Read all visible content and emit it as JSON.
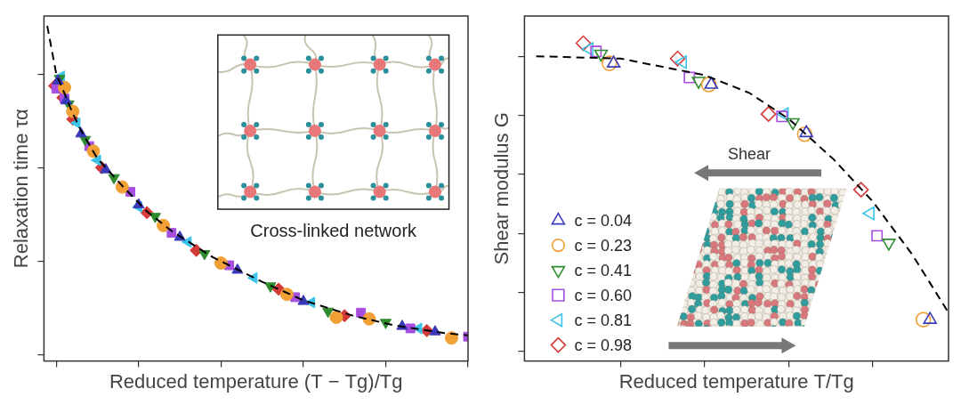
{
  "chart_data": [
    {
      "type": "scatter",
      "x_label": "Reduced temperature (T − Tg)/Tg",
      "y_label": "Relaxation time τα",
      "annotations": [
        "Cross-linked network"
      ],
      "log": "y",
      "grid": false,
      "tick_labels": false,
      "xlim": [
        -0.015,
        0.5
      ],
      "xticks": [
        0,
        0.1,
        0.2,
        0.3,
        0.4,
        0.5
      ],
      "ylim": [
        0.85,
        4200
      ],
      "yticks": [
        1,
        10,
        100,
        1000
      ],
      "series": [
        {
          "color": "#3a3ab8",
          "marker": "triangle",
          "x": [
            0.002,
            0.012,
            0.03,
            0.06,
            0.1,
            0.15,
            0.22,
            0.3,
            0.42,
            0.46
          ],
          "values": [
            850,
            520,
            230,
            95,
            40,
            18,
            8,
            3.7,
            2.0,
            1.75
          ]
        },
        {
          "color": "#f0a035",
          "marker": "circle",
          "x": [
            0.01,
            0.02,
            0.045,
            0.08,
            0.13,
            0.2,
            0.28,
            0.34,
            0.38,
            0.48
          ],
          "values": [
            720,
            400,
            150,
            62,
            24,
            9.5,
            4.4,
            2.5,
            2.4,
            1.5
          ]
        },
        {
          "color": "#2e8b2e",
          "marker": "triangle-down",
          "x": [
            0.004,
            0.015,
            0.035,
            0.07,
            0.12,
            0.18,
            0.26,
            0.33,
            0.4
          ],
          "values": [
            900,
            480,
            200,
            78,
            30,
            12,
            5.4,
            2.9,
            2.2
          ]
        },
        {
          "color": "#a64ee0",
          "marker": "square",
          "x": [
            0.0,
            0.01,
            0.04,
            0.09,
            0.14,
            0.21,
            0.29,
            0.37,
            0.43,
            0.5
          ],
          "values": [
            700,
            550,
            170,
            55,
            20,
            9,
            4.1,
            2.8,
            1.9,
            1.55
          ]
        },
        {
          "color": "#3cc4e8",
          "marker": "triangle-left",
          "x": [
            0.006,
            0.025,
            0.05,
            0.1,
            0.16,
            0.24,
            0.31,
            0.44
          ],
          "values": [
            950,
            300,
            120,
            38,
            16,
            6.6,
            3.6,
            1.9
          ]
        },
        {
          "color": "#d43a3a",
          "marker": "diamond",
          "x": [
            -0.002,
            0.008,
            0.02,
            0.055,
            0.11,
            0.17,
            0.27,
            0.35,
            0.45
          ],
          "values": [
            750,
            560,
            330,
            100,
            33,
            13,
            5,
            2.6,
            1.8
          ]
        },
        {
          "type": "line",
          "line_style": "dashed",
          "color": "#000000",
          "x": [
            -0.011,
            0,
            0.01,
            0.02,
            0.03,
            0.05,
            0.08,
            0.11,
            0.14,
            0.19,
            0.25,
            0.3,
            0.36,
            0.41,
            0.47,
            0.5
          ],
          "values": [
            3300,
            1000,
            620,
            380,
            250,
            125,
            64,
            34,
            21,
            11,
            6,
            3.8,
            2.6,
            2.05,
            1.7,
            1.6
          ]
        }
      ]
    },
    {
      "type": "scatter",
      "x_label": "Reduced temperature T/Tg",
      "y_label": "Shear modulus G",
      "annotations": [
        "Shear"
      ],
      "grid": false,
      "tick_labels": false,
      "legend": "lower left",
      "xlim": [
        0.586,
        1.09
      ],
      "xticks": [
        0.7,
        0.8,
        0.9,
        1.0
      ],
      "ylim": [
        -0.08,
        2.84
      ],
      "yticks": [
        0,
        0.5,
        1,
        1.5,
        2,
        2.5
      ],
      "series": [
        {
          "name": "c = 0.04",
          "color": "#3a3ab8",
          "marker": "triangle",
          "x": [
            0.692,
            0.808,
            0.921,
            1.068
          ],
          "values": [
            2.44,
            2.26,
            1.85,
            0.27
          ]
        },
        {
          "name": "c = 0.23",
          "color": "#f0a035",
          "marker": "circle",
          "x": [
            0.687,
            0.805,
            0.919,
            1.06
          ],
          "values": [
            2.44,
            2.26,
            1.84,
            0.27
          ]
        },
        {
          "name": "c = 0.41",
          "color": "#2e8b2e",
          "marker": "triangle-down",
          "x": [
            0.677,
            0.793,
            0.905,
            1.019
          ],
          "values": [
            2.52,
            2.29,
            1.94,
            0.92
          ]
        },
        {
          "name": "c = 0.60",
          "color": "#a64ee0",
          "marker": "square",
          "x": [
            0.671,
            0.782,
            0.892,
            1.005
          ],
          "values": [
            2.54,
            2.32,
            1.99,
            0.98
          ]
        },
        {
          "name": "c = 0.81",
          "color": "#3cc4e8",
          "marker": "triangle-left",
          "x": [
            0.663,
            0.774,
            0.895,
            0.997
          ],
          "values": [
            2.56,
            2.45,
            2.01,
            1.17
          ]
        },
        {
          "name": "c = 0.98",
          "color": "#d43a3a",
          "marker": "diamond",
          "x": [
            0.656,
            0.768,
            0.876,
            0.986
          ],
          "values": [
            2.61,
            2.48,
            2.01,
            1.37
          ]
        },
        {
          "type": "line",
          "line_style": "dashed",
          "color": "#000000",
          "x": [
            0.6,
            0.7,
            0.8,
            0.853,
            0.9,
            0.953,
            1.0,
            1.047,
            1.089
          ],
          "values": [
            2.5,
            2.48,
            2.34,
            2.19,
            1.97,
            1.63,
            1.27,
            0.82,
            0.34
          ]
        }
      ]
    }
  ]
}
